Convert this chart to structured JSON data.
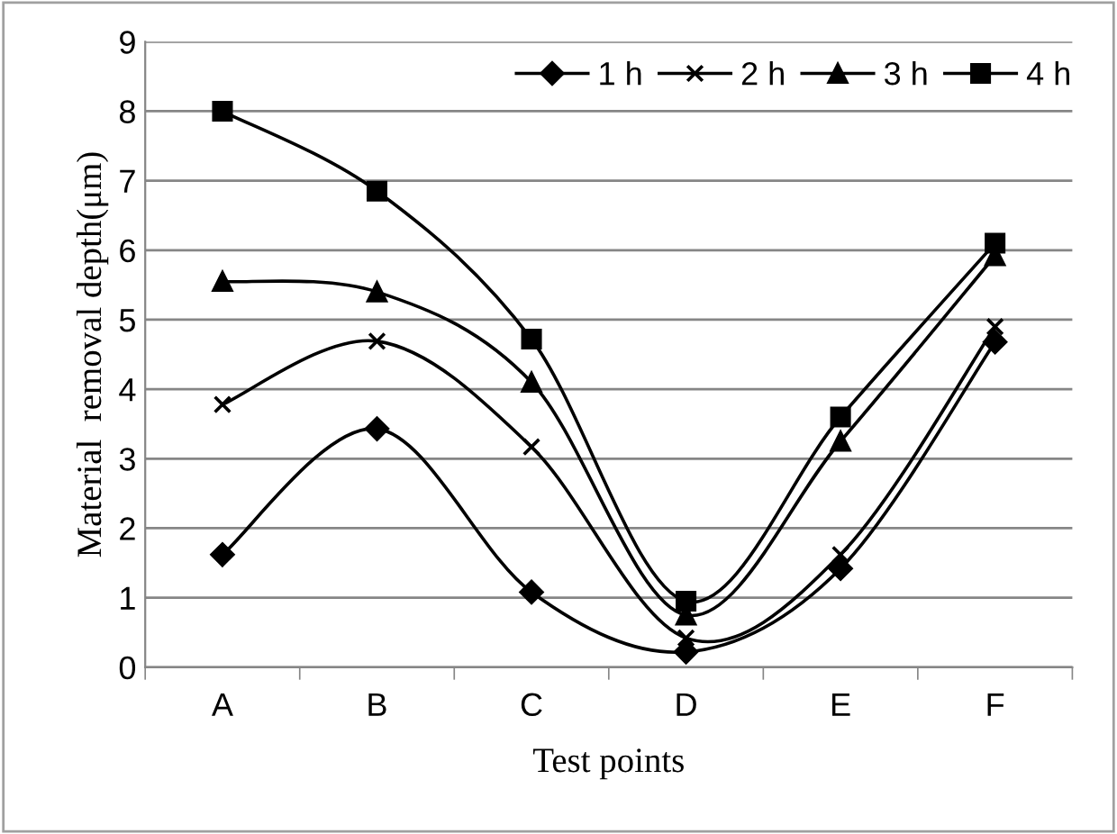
{
  "chart_data": {
    "type": "line",
    "xlabel": "Test points",
    "ylabel": "Material  removal depth(μm)",
    "categories": [
      "A",
      "B",
      "C",
      "D",
      "E",
      "F"
    ],
    "series": [
      {
        "name": "1 h",
        "color": "#000000",
        "marker": "diamond",
        "values": [
          1.62,
          3.43,
          1.08,
          0.22,
          1.42,
          4.68
        ]
      },
      {
        "name": "2 h",
        "color": "#000000",
        "marker": "cross",
        "values": [
          3.78,
          4.69,
          3.17,
          0.42,
          1.62,
          4.9
        ]
      },
      {
        "name": "3 h",
        "color": "#000000",
        "marker": "triangle",
        "values": [
          5.55,
          5.4,
          4.1,
          0.75,
          3.25,
          5.92
        ]
      },
      {
        "name": "4 h",
        "color": "#000000",
        "marker": "square",
        "values": [
          8.0,
          6.85,
          4.72,
          0.95,
          3.6,
          6.1
        ]
      }
    ],
    "ylim": [
      0,
      9
    ],
    "yticks": [
      0,
      1,
      2,
      3,
      4,
      5,
      6,
      7,
      8,
      9
    ],
    "grid": "y",
    "legend": "top right",
    "line_style": "solid"
  }
}
